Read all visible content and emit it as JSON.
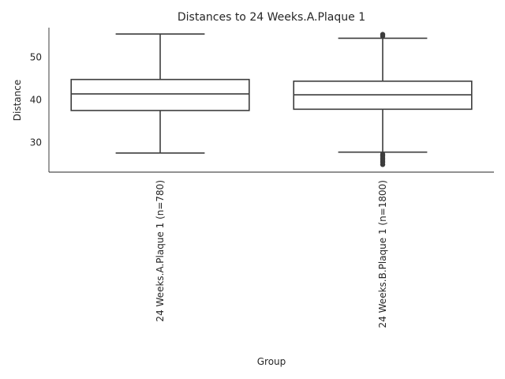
{
  "chart_data": {
    "type": "box",
    "title": "Distances to 24 Weeks.A.Plaque 1",
    "xlabel": "Group",
    "ylabel": "Distance",
    "ylim": [
      23,
      57
    ],
    "yticks": [
      30,
      40,
      50
    ],
    "grid": false,
    "categories": [
      "24 Weeks.A.Plaque 1 (n=780)",
      "24 Weeks.B.Plaque 1 (n=1800)"
    ],
    "boxes": [
      {
        "whisker_low": 27.5,
        "q1": 37.5,
        "median": 41.4,
        "q3": 44.8,
        "whisker_high": 55.5,
        "outliers": []
      },
      {
        "whisker_low": 27.7,
        "q1": 37.8,
        "median": 41.2,
        "q3": 44.4,
        "whisker_high": 54.5,
        "outliers": [
          24.8,
          25.4,
          25.9,
          26.3,
          26.8,
          27.2,
          55.0,
          55.4
        ]
      }
    ]
  }
}
